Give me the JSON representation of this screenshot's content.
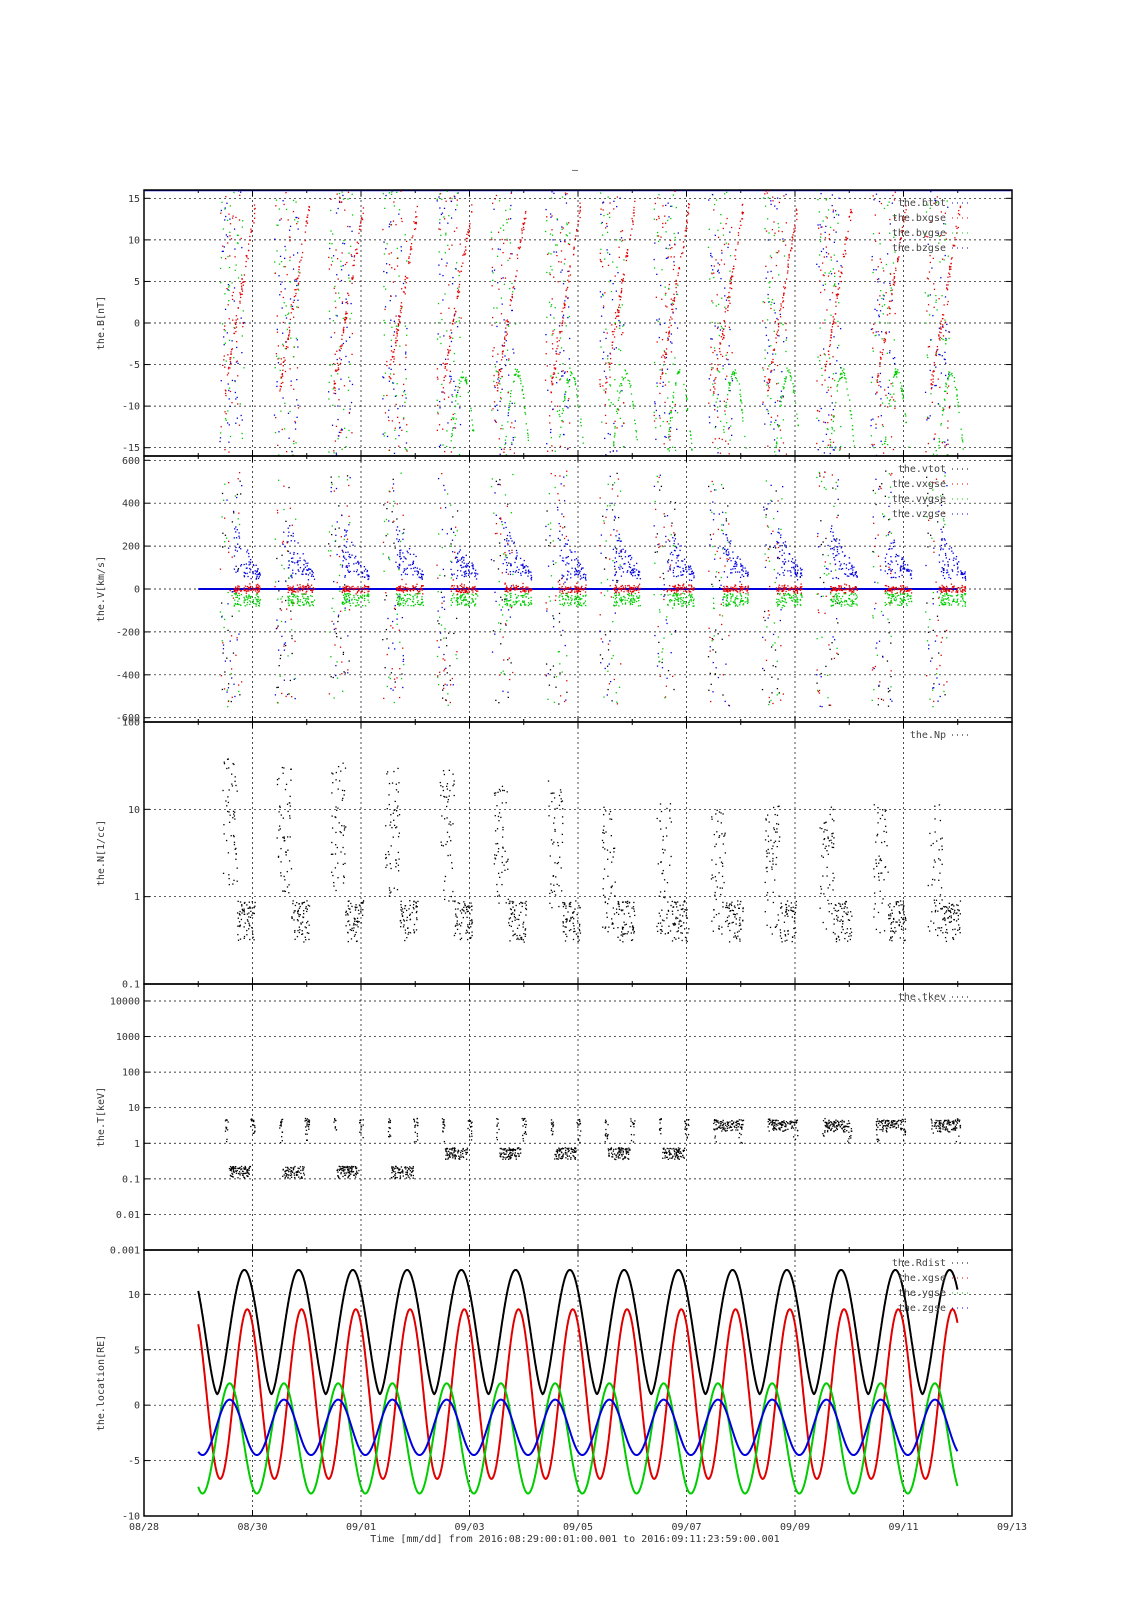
{
  "title": "–",
  "xlabel": "Time [mm/dd]  from 2016:08:29:00:01:00.001  to  2016:09:11:23:59:00.001",
  "chart_data": {
    "x_ticks": [
      "08/28",
      "08/30",
      "09/01",
      "09/03",
      "09/05",
      "09/07",
      "09/09",
      "09/11",
      "09/13"
    ],
    "x_range_days": [
      0,
      16
    ],
    "data_range_days": [
      1.0,
      15.0
    ],
    "colors": {
      "black": "#000000",
      "red": "#e00000",
      "green": "#00cc00",
      "blue": "#0000dd"
    },
    "panels": [
      {
        "type": "scatter",
        "ylabel": "the.B[nT]",
        "scale": "linear",
        "ylim": [
          -16,
          16
        ],
        "yticks": [
          "15",
          "10",
          "5",
          "0",
          "-5",
          "-10",
          "-15"
        ],
        "series": [
          {
            "name": "the.btot",
            "color": "blue"
          },
          {
            "name": "the.bxgse",
            "color": "red"
          },
          {
            "name": "the.bygse",
            "color": "green"
          },
          {
            "name": "the.bzgse",
            "color": "blue"
          }
        ]
      },
      {
        "type": "scatter",
        "ylabel": "the.V[km/s]",
        "scale": "linear",
        "ylim": [
          -620,
          620
        ],
        "yticks": [
          "600",
          "400",
          "200",
          "0",
          "-200",
          "-400",
          "-600"
        ],
        "series": [
          {
            "name": "the.vtot",
            "color": "black"
          },
          {
            "name": "the.vxgse",
            "color": "red"
          },
          {
            "name": "the.vygse",
            "color": "green"
          },
          {
            "name": "the.vzgse",
            "color": "blue"
          }
        ]
      },
      {
        "type": "scatter",
        "ylabel": "the.N[1/cc]",
        "scale": "log",
        "ylim": [
          0.1,
          100
        ],
        "yticks": [
          "100",
          "10",
          "1",
          "0.1"
        ],
        "series": [
          {
            "name": "the.Np",
            "color": "black"
          }
        ]
      },
      {
        "type": "scatter",
        "ylabel": "the.T[keV]",
        "scale": "log",
        "ylim": [
          0.001,
          30000
        ],
        "yticks": [
          "10000",
          "1000",
          "100",
          "10",
          "1",
          "0.1",
          "0.01",
          "0.001"
        ],
        "series": [
          {
            "name": "the.tkev",
            "color": "black"
          }
        ]
      },
      {
        "type": "line",
        "ylabel": "the.location[RE]",
        "scale": "linear",
        "ylim": [
          -10,
          14
        ],
        "yticks": [
          "10",
          "5",
          "0",
          "-5",
          "-10"
        ],
        "series": [
          {
            "name": "the.Rdist",
            "color": "black"
          },
          {
            "name": "the.xgse",
            "color": "red"
          },
          {
            "name": "the.ygse",
            "color": "green"
          },
          {
            "name": "the.zgse",
            "color": "blue"
          }
        ],
        "orbit": {
          "period_days": 1.0,
          "first_apogee_day": 1.85,
          "rdist_range": [
            1.0,
            12.2
          ],
          "xgse_max": 9.2,
          "ygse_min": -8.2,
          "zgse_min": -4.8
        }
      }
    ]
  }
}
